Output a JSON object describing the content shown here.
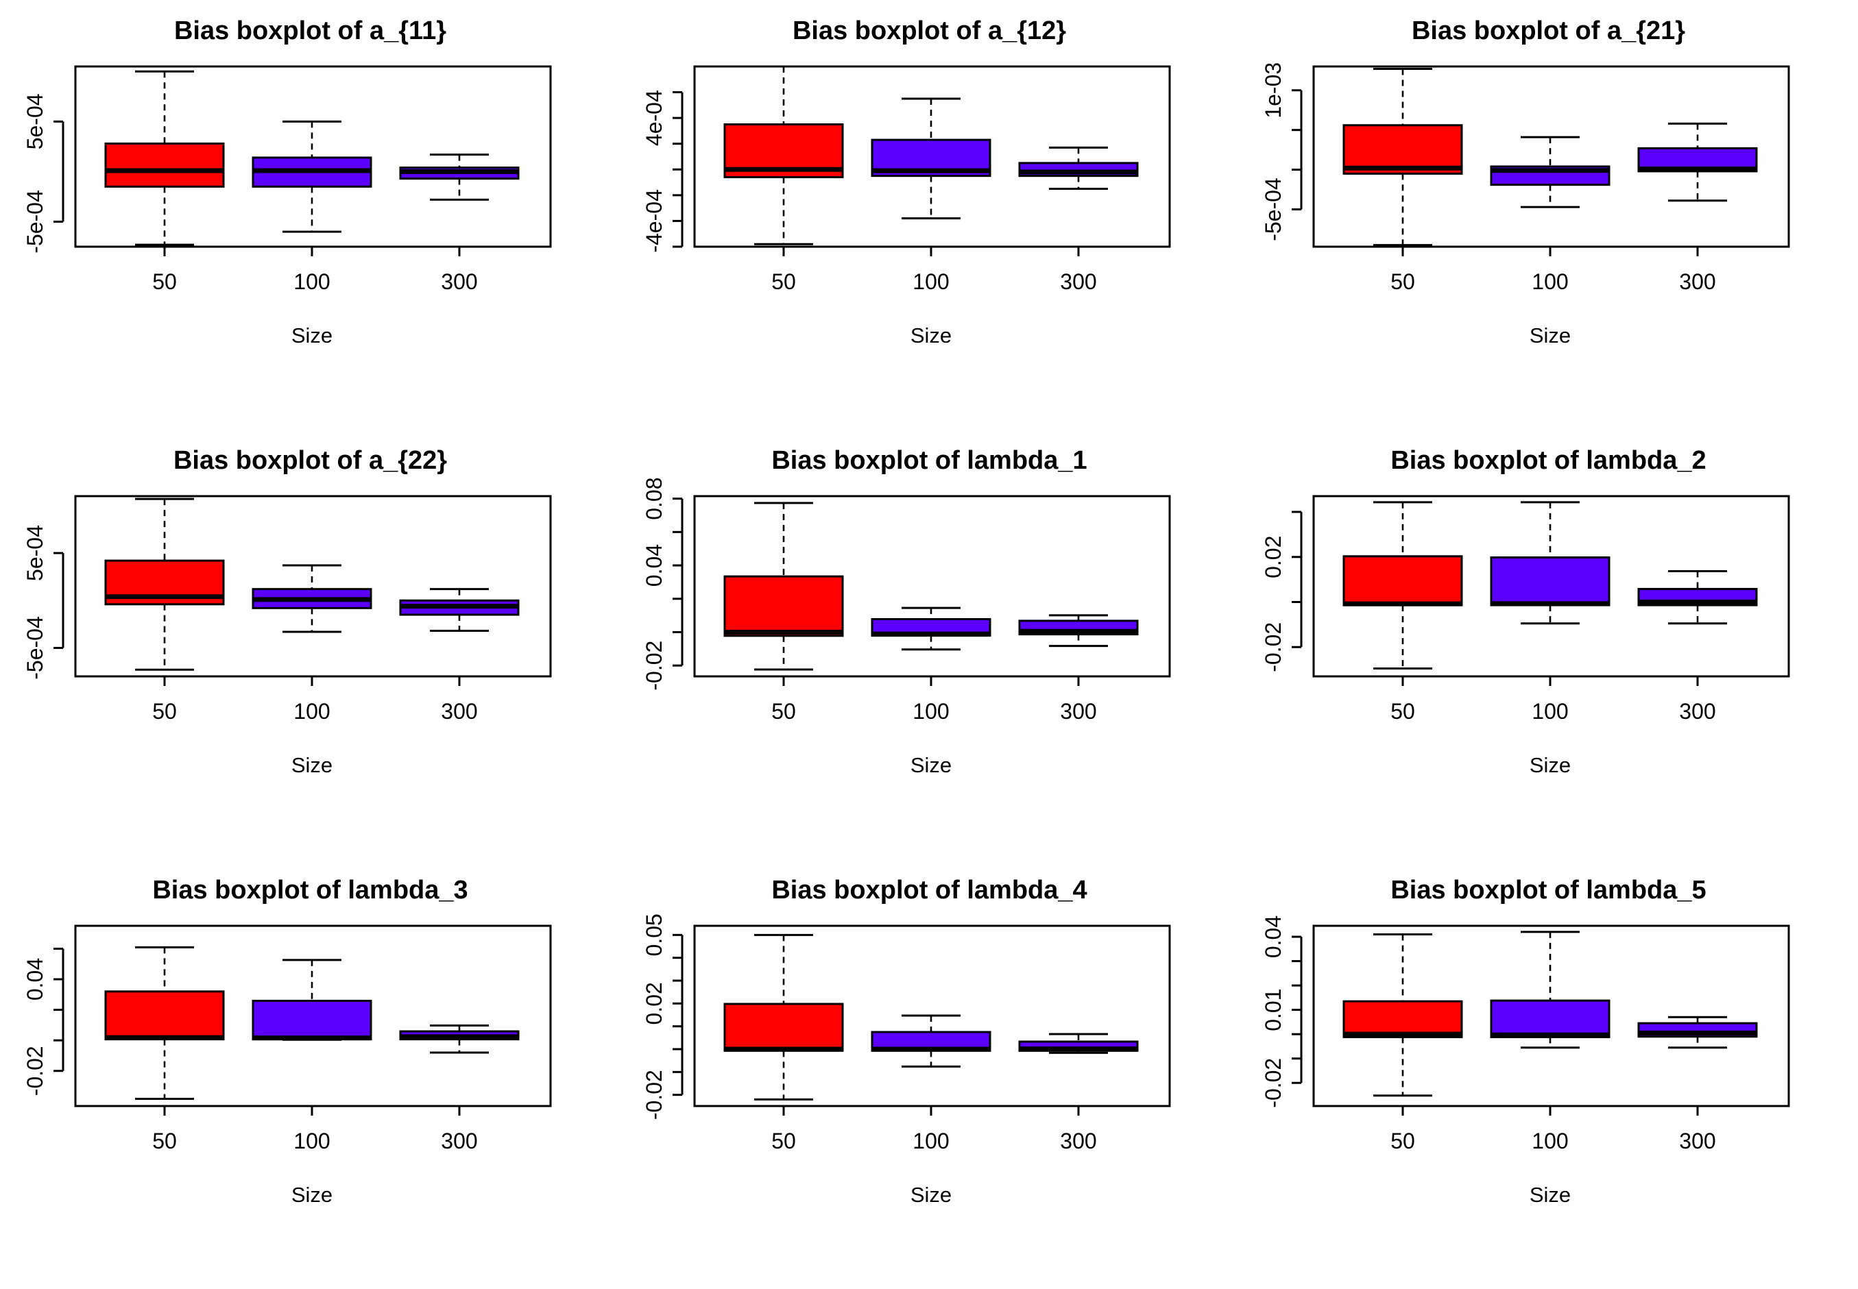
{
  "figure": {
    "ncols": 3
  },
  "colors": {
    "series_a": "#ff0000",
    "series_b": "#5b00ff",
    "frame": "#000000"
  },
  "chart_data": [
    {
      "type": "boxplot",
      "title": "Bias boxplot of a_{11}",
      "xlabel": "Size",
      "ylabel": "",
      "categories": [
        "50",
        "100",
        "300"
      ],
      "ylim": [
        -0.00075,
        0.00105
      ],
      "y_ticks": [
        -0.0005,
        0.0005
      ],
      "y_tick_labels": [
        "-5e-04",
        "5e-04"
      ],
      "boxes": [
        {
          "category": "50",
          "color": "series_a",
          "whisker_low": -0.00073,
          "q1": -0.00015,
          "median": 1e-05,
          "q3": 0.00028,
          "whisker_high": 0.001
        },
        {
          "category": "100",
          "color": "series_b",
          "whisker_low": -0.0006,
          "q1": -0.00015,
          "median": 1e-05,
          "q3": 0.00014,
          "whisker_high": 0.0005
        },
        {
          "category": "300",
          "color": "series_b",
          "whisker_low": -0.00028,
          "q1": -7e-05,
          "median": 0.0,
          "q3": 4e-05,
          "whisker_high": 0.00017
        }
      ]
    },
    {
      "type": "boxplot",
      "title": "Bias boxplot of a_{12}",
      "xlabel": "Size",
      "ylabel": "",
      "categories": [
        "50",
        "100",
        "300"
      ],
      "ylim": [
        -0.0006,
        0.0008
      ],
      "y_ticks": [
        -0.0004,
        0.0,
        0.0004
      ],
      "y_tick_labels": [
        "-4e-04",
        "",
        "4e-04"
      ],
      "minor_y_ticks": [
        -0.0006,
        -0.0002,
        0.0002,
        0.0006
      ],
      "boxes": [
        {
          "category": "50",
          "color": "series_a",
          "whisker_low": -0.00058,
          "q1": -6e-05,
          "median": 0.0,
          "q3": 0.00035,
          "whisker_high": 0.0008
        },
        {
          "category": "100",
          "color": "series_b",
          "whisker_low": -0.00038,
          "q1": -5e-05,
          "median": -1e-05,
          "q3": 0.00023,
          "whisker_high": 0.00055
        },
        {
          "category": "300",
          "color": "series_b",
          "whisker_low": -0.00015,
          "q1": -5e-05,
          "median": -2e-05,
          "q3": 5e-05,
          "whisker_high": 0.00017
        }
      ]
    },
    {
      "type": "boxplot",
      "title": "Bias boxplot of a_{21}",
      "xlabel": "Size",
      "ylabel": "",
      "categories": [
        "50",
        "100",
        "300"
      ],
      "ylim": [
        -0.00097,
        0.0013
      ],
      "y_ticks": [
        -0.0005,
        0.0,
        0.0005,
        0.001
      ],
      "y_tick_labels": [
        "-5e-04",
        "",
        "",
        "1e-03"
      ],
      "boxes": [
        {
          "category": "50",
          "color": "series_a",
          "whisker_low": -0.00095,
          "q1": -5e-05,
          "median": 2e-05,
          "q3": 0.00056,
          "whisker_high": 0.00127
        },
        {
          "category": "100",
          "color": "series_b",
          "whisker_low": -0.00047,
          "q1": -0.00019,
          "median": -1e-05,
          "q3": 4e-05,
          "whisker_high": 0.00041
        },
        {
          "category": "300",
          "color": "series_b",
          "whisker_low": -0.00039,
          "q1": -2e-05,
          "median": 1e-05,
          "q3": 0.00027,
          "whisker_high": 0.00058
        }
      ]
    },
    {
      "type": "boxplot",
      "title": "Bias boxplot of a_{22}",
      "xlabel": "Size",
      "ylabel": "",
      "categories": [
        "50",
        "100",
        "300"
      ],
      "ylim": [
        -0.0008,
        0.0011
      ],
      "y_ticks": [
        -0.0005,
        0.0005
      ],
      "y_tick_labels": [
        "-5e-04",
        "5e-04"
      ],
      "boxes": [
        {
          "category": "50",
          "color": "series_a",
          "whisker_low": -0.00073,
          "q1": -4e-05,
          "median": 4e-05,
          "q3": 0.00042,
          "whisker_high": 0.00107
        },
        {
          "category": "100",
          "color": "series_b",
          "whisker_low": -0.00033,
          "q1": -8e-05,
          "median": 1e-05,
          "q3": 0.00012,
          "whisker_high": 0.00037
        },
        {
          "category": "300",
          "color": "series_b",
          "whisker_low": -0.00032,
          "q1": -0.00015,
          "median": -6e-05,
          "q3": 0.0,
          "whisker_high": 0.00012
        }
      ]
    },
    {
      "type": "boxplot",
      "title": "Bias boxplot of lambda_1",
      "xlabel": "Size",
      "ylabel": "",
      "categories": [
        "50",
        "100",
        "300"
      ],
      "ylim": [
        -0.0265,
        0.0815
      ],
      "y_ticks": [
        -0.02,
        0.04,
        0.08
      ],
      "y_tick_labels": [
        "-0.02",
        "0.04",
        "0.08"
      ],
      "minor_y_ticks": [
        0.0,
        0.02,
        0.06
      ],
      "boxes": [
        {
          "category": "50",
          "color": "series_a",
          "whisker_low": -0.0224,
          "q1": -0.0022,
          "median": 0.0,
          "q3": 0.0334,
          "whisker_high": 0.0774
        },
        {
          "category": "100",
          "color": "series_b",
          "whisker_low": -0.0104,
          "q1": -0.0021,
          "median": -0.0011,
          "q3": 0.0078,
          "whisker_high": 0.0145
        },
        {
          "category": "300",
          "color": "series_b",
          "whisker_low": -0.0083,
          "q1": -0.0013,
          "median": 0.0005,
          "q3": 0.0068,
          "whisker_high": 0.0101
        }
      ]
    },
    {
      "type": "boxplot",
      "title": "Bias boxplot of lambda_2",
      "xlabel": "Size",
      "ylabel": "",
      "categories": [
        "50",
        "100",
        "300"
      ],
      "ylim": [
        -0.033,
        0.047
      ],
      "y_ticks": [
        -0.02,
        0.0,
        0.02,
        0.04
      ],
      "y_tick_labels": [
        "-0.02",
        "",
        "0.02",
        ""
      ],
      "boxes": [
        {
          "category": "50",
          "color": "series_a",
          "whisker_low": -0.0295,
          "q1": -0.0014,
          "median": -0.0008,
          "q3": 0.0203,
          "whisker_high": 0.0443
        },
        {
          "category": "100",
          "color": "series_b",
          "whisker_low": -0.0095,
          "q1": -0.0014,
          "median": -0.0007,
          "q3": 0.0198,
          "whisker_high": 0.0443
        },
        {
          "category": "300",
          "color": "series_b",
          "whisker_low": -0.0095,
          "q1": -0.0014,
          "median": 0.0,
          "q3": 0.0058,
          "whisker_high": 0.0137
        }
      ]
    },
    {
      "type": "boxplot",
      "title": "Bias boxplot of lambda_3",
      "xlabel": "Size",
      "ylabel": "",
      "categories": [
        "50",
        "100",
        "300"
      ],
      "ylim": [
        -0.043,
        0.075
      ],
      "y_ticks": [
        -0.02,
        0.04
      ],
      "y_tick_labels": [
        "-0.02",
        "0.04"
      ],
      "minor_y_ticks": [
        0.0,
        0.02,
        0.06
      ],
      "boxes": [
        {
          "category": "50",
          "color": "series_a",
          "whisker_low": -0.0383,
          "q1": 0.0007,
          "median": 0.0018,
          "q3": 0.032,
          "whisker_high": 0.0609
        },
        {
          "category": "100",
          "color": "series_b",
          "whisker_low": 0.0004,
          "q1": 0.0007,
          "median": 0.0016,
          "q3": 0.0259,
          "whisker_high": 0.0526
        },
        {
          "category": "300",
          "color": "series_b",
          "whisker_low": -0.008,
          "q1": 0.0007,
          "median": 0.0024,
          "q3": 0.0059,
          "whisker_high": 0.0097
        }
      ]
    },
    {
      "type": "boxplot",
      "title": "Bias boxplot of lambda_4",
      "xlabel": "Size",
      "ylabel": "",
      "categories": [
        "50",
        "100",
        "300"
      ],
      "ylim": [
        -0.0249,
        0.054
      ],
      "y_ticks": [
        -0.02,
        0.02,
        0.05
      ],
      "y_tick_labels": [
        "-0.02",
        "0.02",
        "0.05"
      ],
      "minor_y_ticks": [
        -0.01,
        0.0,
        0.01,
        0.03,
        0.04
      ],
      "boxes": [
        {
          "category": "50",
          "color": "series_a",
          "whisker_low": -0.022,
          "q1": -0.0007,
          "median": 0.0,
          "q3": 0.0198,
          "whisker_high": 0.05
        },
        {
          "category": "100",
          "color": "series_b",
          "whisker_low": -0.0076,
          "q1": -0.0007,
          "median": 0.0,
          "q3": 0.0075,
          "whisker_high": 0.0147
        },
        {
          "category": "300",
          "color": "series_b",
          "whisker_low": -0.0016,
          "q1": -0.0007,
          "median": 0.0001,
          "q3": 0.0033,
          "whisker_high": 0.0066
        }
      ]
    },
    {
      "type": "boxplot",
      "title": "Bias boxplot of lambda_5",
      "xlabel": "Size",
      "ylabel": "",
      "categories": [
        "50",
        "100",
        "300"
      ],
      "ylim": [
        -0.0295,
        0.0445
      ],
      "y_ticks": [
        -0.02,
        0.01,
        0.04
      ],
      "y_tick_labels": [
        "-0.02",
        "0.01",
        "0.04"
      ],
      "minor_y_ticks": [
        -0.01,
        0.0,
        0.02,
        0.03
      ],
      "boxes": [
        {
          "category": "50",
          "color": "series_a",
          "whisker_low": -0.0252,
          "q1": -0.0012,
          "median": 0.0,
          "q3": 0.0135,
          "whisker_high": 0.041
        },
        {
          "category": "100",
          "color": "series_b",
          "whisker_low": -0.0055,
          "q1": -0.0012,
          "median": -0.0003,
          "q3": 0.0138,
          "whisker_high": 0.042
        },
        {
          "category": "300",
          "color": "series_b",
          "whisker_low": -0.0055,
          "q1": -0.001,
          "median": 0.0005,
          "q3": 0.0045,
          "whisker_high": 0.007
        }
      ]
    }
  ]
}
